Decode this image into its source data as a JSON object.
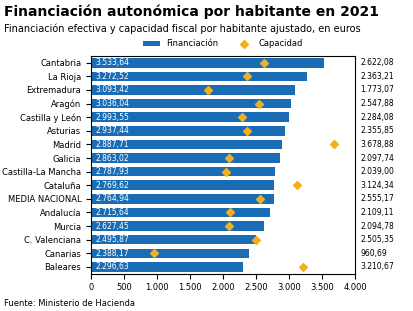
{
  "chart_data": {
    "type": "bar",
    "orientation": "horizontal",
    "title": "Financiación autonómica por habitante en 2021",
    "subtitle": "Financiación efectiva y capacidad fiscal por habitante ajustado, en euros",
    "source": "Fuente: Ministerio de Hacienda",
    "categories": [
      "Cantabria",
      "La Rioja",
      "Extremadura",
      "Aragón",
      "Castilla y León",
      "Asturias",
      "Madrid",
      "Galicia",
      "Castilla-La Mancha",
      "Cataluña",
      "MEDIA NACIONAL",
      "Andalucía",
      "Murcia",
      "C. Valenciana",
      "Canarias",
      "Baleares"
    ],
    "series": [
      {
        "name": "Financiación",
        "type": "bar",
        "color": "#1a6db5",
        "values": [
          3533.64,
          3272.52,
          3093.42,
          3036.04,
          2993.55,
          2937.44,
          2887.71,
          2863.02,
          2787.93,
          2769.62,
          2764.94,
          2715.64,
          2627.45,
          2495.87,
          2388.17,
          2296.63
        ],
        "value_labels": [
          "3.533,64",
          "3.272,52",
          "3.093,42",
          "3.036,04",
          "2.993,55",
          "2.937,44",
          "2.887,71",
          "2.863,02",
          "2.787,93",
          "2.769,62",
          "2.764,94",
          "2.715,64",
          "2.627,45",
          "2.495,87",
          "2.388,17",
          "2.296,63"
        ]
      },
      {
        "name": "Capacidad",
        "type": "scatter",
        "marker": "D",
        "color": "#f0b020",
        "values": [
          2622.08,
          2363.21,
          1773.07,
          2547.88,
          2284.08,
          2355.85,
          3678.88,
          2097.74,
          2039.0,
          3124.34,
          2555.17,
          2109.11,
          2094.78,
          2505.35,
          960.69,
          3210.67
        ],
        "value_labels": [
          "2.622,08",
          "2.363,21",
          "1.773,07",
          "2.547,88",
          "2.284,08",
          "2.355,85",
          "3.678,88",
          "2.097,74",
          "2.039,00",
          "3.124,34",
          "2.555,17",
          "2.109,11",
          "2.094,78",
          "2.505,35",
          "960,69",
          "3.210,67"
        ]
      }
    ],
    "data_labels": true,
    "legend": "upper center",
    "xlim": [
      0,
      4000
    ],
    "xticks": [
      0,
      500,
      {
        "value": 1000,
        "label": "1.000"
      },
      {
        "value": 1500,
        "label": "1.500"
      },
      {
        "value": 2000,
        "label": "2.000"
      },
      {
        "value": 2500,
        "label": "2.500"
      },
      {
        "value": 3000,
        "label": "3.000"
      },
      {
        "value": 3500,
        "label": "3.500"
      },
      {
        "value": 4000,
        "label": "4.000"
      }
    ]
  }
}
